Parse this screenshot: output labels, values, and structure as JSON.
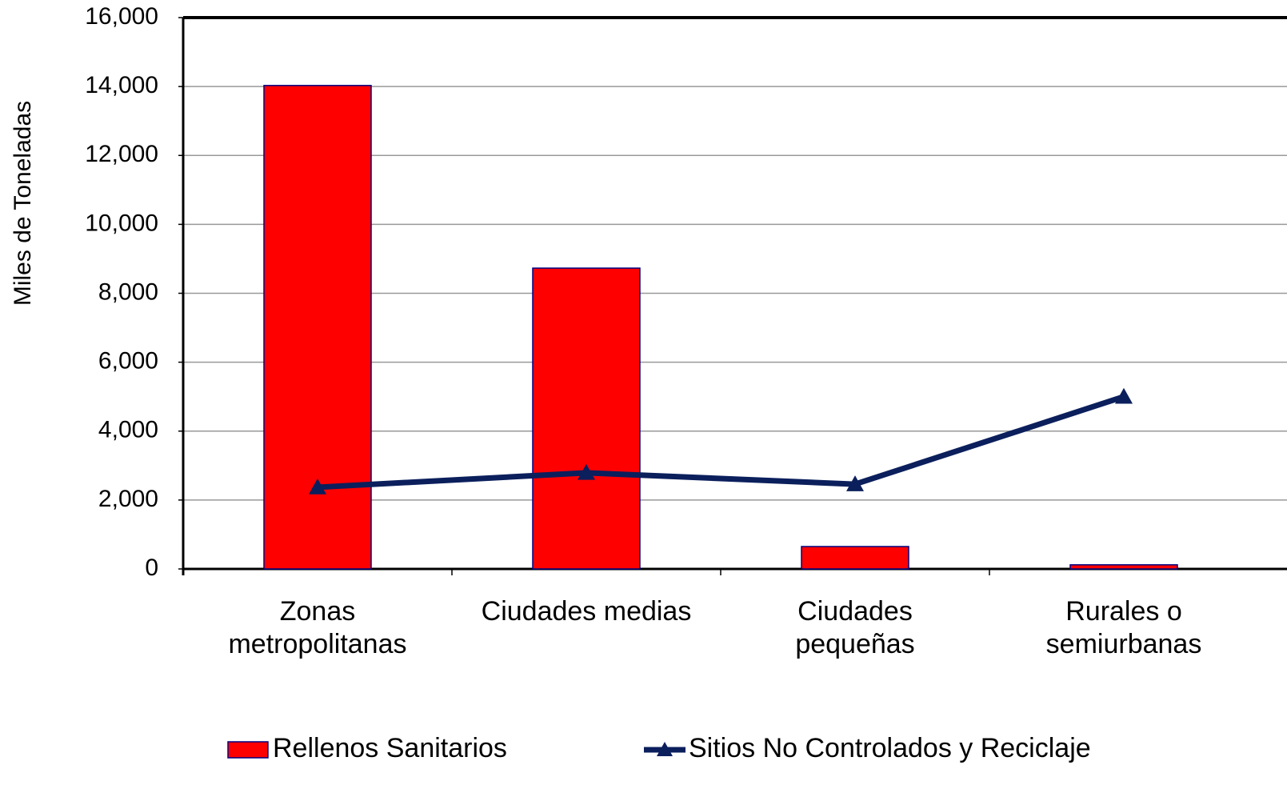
{
  "chart_data": {
    "type": "bar",
    "y_label": "Miles de Toneladas",
    "categories": [
      "Zonas\nmetropolitanas",
      "Ciudades medias",
      "Ciudades\npequeñas",
      "Rurales o\nsemiurbanas"
    ],
    "series": [
      {
        "name": "Rellenos Sanitarios",
        "type": "bar",
        "color": "#ff0000",
        "values": [
          14030,
          8730,
          650,
          120
        ]
      },
      {
        "name": "Sitios No Controlados y Reciclaje",
        "type": "line",
        "color": "#0b1f5c",
        "values": [
          2370,
          2790,
          2460,
          5000
        ]
      }
    ],
    "ylim": [
      0,
      16000
    ],
    "yticks": [
      0,
      {
        "value": 2000,
        "label": "2,000"
      },
      {
        "value": 4000,
        "label": "4,000"
      },
      {
        "value": 6000,
        "label": "6,000"
      },
      {
        "value": 8000,
        "label": "8,000"
      },
      {
        "value": 10000,
        "label": "10,000"
      },
      {
        "value": 12000,
        "label": "12,000"
      },
      {
        "value": 14000,
        "label": "14,000"
      },
      {
        "value": 16000,
        "label": "16,000"
      }
    ],
    "grid": true,
    "legend": "bottom"
  }
}
